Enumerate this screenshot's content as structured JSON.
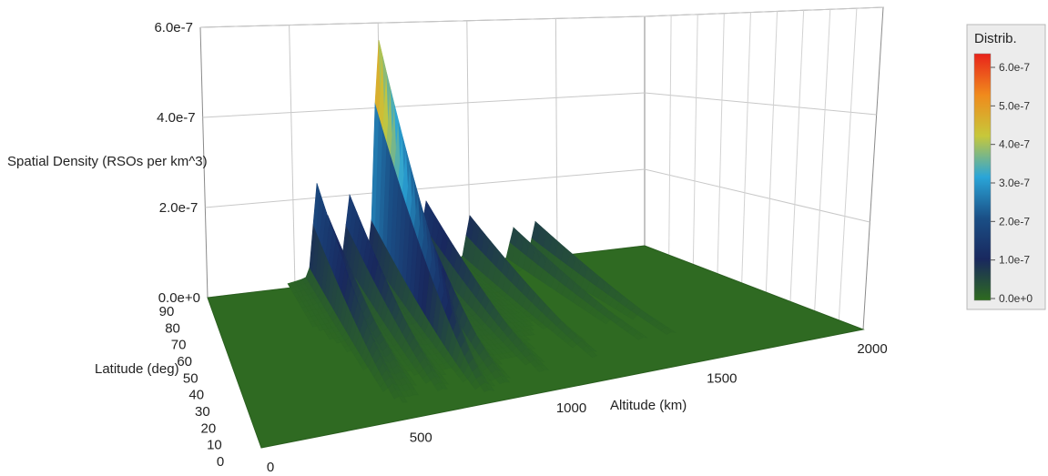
{
  "chart_data": {
    "type": "surface3d",
    "zlabel": "Spatial Density (RSOs per km^3)",
    "xlabel": "Altitude (km)",
    "ylabel": "Latitude (deg)",
    "z_ticks": [
      "0.0e+0",
      "2.0e-7",
      "4.0e-7",
      "6.0e-7"
    ],
    "x_ticks": [
      "0",
      "500",
      "1000",
      "1500",
      "2000"
    ],
    "y_ticks": [
      "0",
      "10",
      "20",
      "30",
      "40",
      "50",
      "60",
      "70",
      "80",
      "90"
    ],
    "xlim": [
      0,
      2000
    ],
    "ylim": [
      0,
      90
    ],
    "zlim": [
      0,
      6e-07
    ],
    "colorbar": {
      "title": "Distrib.",
      "ticks": [
        "0.0e+0",
        "1.0e-7",
        "2.0e-7",
        "3.0e-7",
        "4.0e-7",
        "5.0e-7",
        "6.0e-7"
      ],
      "colors": [
        "#2e6b1f",
        "#19285e",
        "#1a4f86",
        "#2aa5d8",
        "#c7c83a",
        "#f08a1c",
        "#e8231b"
      ]
    },
    "peaks": [
      {
        "altitude": 500,
        "density": 2.2e-07
      },
      {
        "altitude": 550,
        "density": 1.3e-07
      },
      {
        "altitude": 650,
        "density": 1.6e-07
      },
      {
        "altitude": 780,
        "density": 5.3e-07
      },
      {
        "altitude": 850,
        "density": 2.6e-07
      },
      {
        "altitude": 1000,
        "density": 1.3e-07
      },
      {
        "altitude": 1200,
        "density": 1.1e-07
      },
      {
        "altitude": 1400,
        "density": 8e-08
      },
      {
        "altitude": 1500,
        "density": 9e-08
      }
    ]
  }
}
